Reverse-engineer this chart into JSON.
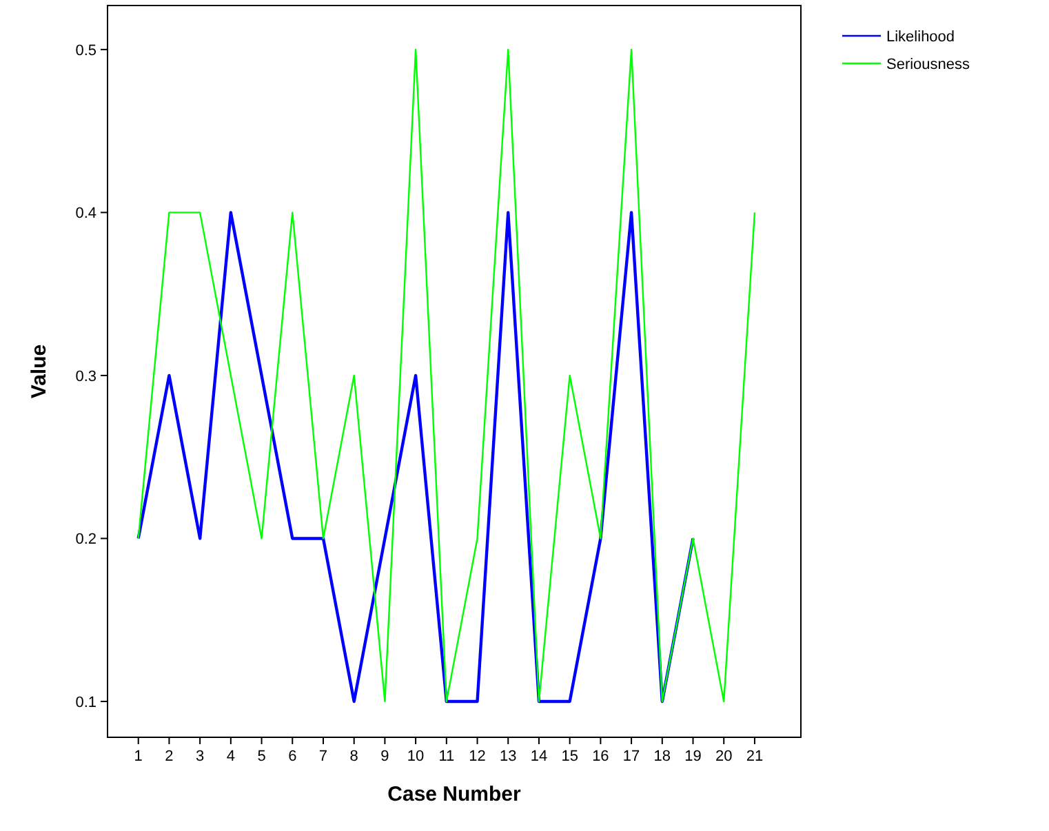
{
  "chart_data": {
    "type": "line",
    "xlabel": "Case Number",
    "ylabel": "Value",
    "x": [
      1,
      2,
      3,
      4,
      5,
      6,
      7,
      8,
      9,
      10,
      11,
      12,
      13,
      14,
      15,
      16,
      17,
      18,
      19,
      20,
      21
    ],
    "xlim": [
      0,
      22.5
    ],
    "xticks": [
      1,
      2,
      3,
      4,
      5,
      6,
      7,
      8,
      9,
      10,
      11,
      12,
      13,
      14,
      15,
      16,
      17,
      18,
      19,
      20,
      21
    ],
    "ylim": [
      0.078,
      0.527
    ],
    "yticks": [
      0.1,
      0.2,
      0.3,
      0.4,
      0.5
    ],
    "grid": false,
    "legend": "top right",
    "marker": "none",
    "line_style": "solid",
    "series": [
      {
        "name": "Likelihood",
        "color": "#0000ff",
        "values": [
          0.2,
          0.3,
          0.2,
          0.4,
          0.3,
          0.2,
          0.2,
          0.1,
          0.2,
          0.3,
          0.1,
          0.1,
          0.4,
          0.1,
          0.1,
          0.2,
          0.4,
          0.1,
          0.2,
          null,
          null
        ]
      },
      {
        "name": "Seriousness",
        "color": "#00ff00",
        "values": [
          0.2,
          0.4,
          0.4,
          0.3,
          0.2,
          0.4,
          0.2,
          0.3,
          0.1,
          0.5,
          0.1,
          0.2,
          0.5,
          0.1,
          0.3,
          0.2,
          0.5,
          0.1,
          0.2,
          0.1,
          0.4
        ]
      }
    ]
  }
}
